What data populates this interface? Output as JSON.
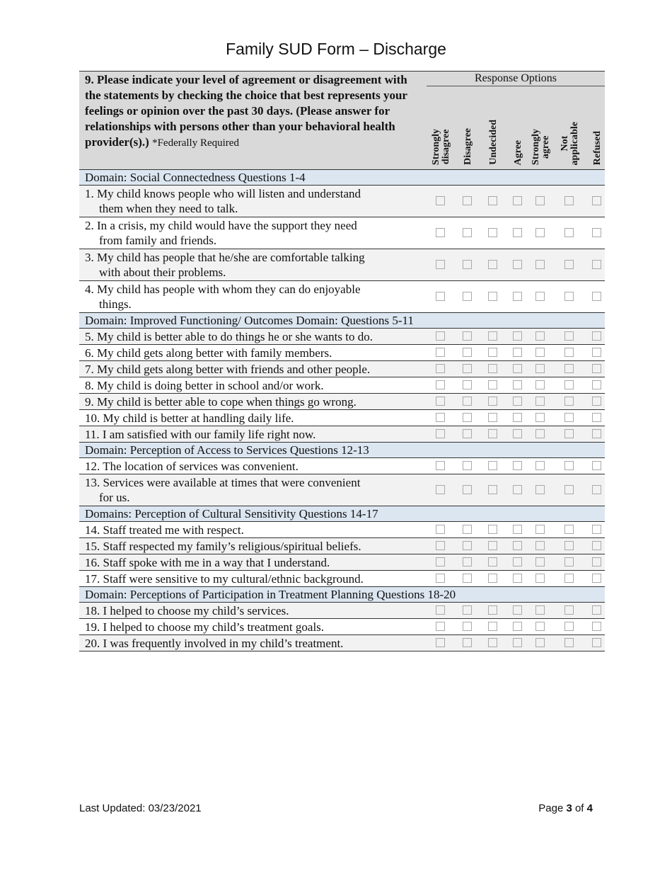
{
  "title": "Family SUD Form – Discharge",
  "header": {
    "question": "9. Please indicate your level of agreement or disagreement with the statements by checking the choice that best represents your feelings or opinion over the past 30 days. (Please answer for relationships with persons other than your behavioral health provider(s).)",
    "required_note": "*Federally Required",
    "response_options_label": "Response Options",
    "options": [
      "Strongly\ndisagree",
      "Disagree",
      "Undecided",
      "Agree",
      "Strongly\nagree",
      "Not\napplicable",
      "Refused"
    ]
  },
  "sections": [
    {
      "domain": "Domain: Social Connectedness Questions 1-4",
      "items": [
        {
          "line1": "1. My child knows people who will listen and understand",
          "line2": "them when they need to talk.",
          "checked": []
        },
        {
          "line1": "2. In a crisis, my child would have the support they need",
          "line2": "from family and friends.",
          "checked": []
        },
        {
          "line1": "3. My child has people that he/she are comfortable talking",
          "line2": "with about their problems.",
          "checked": []
        },
        {
          "line1": "4. My child has people with whom they can do enjoyable",
          "line2": "things.",
          "checked": []
        }
      ]
    },
    {
      "domain": "Domain: Improved Functioning/ Outcomes Domain: Questions 5-11",
      "items": [
        {
          "line1": "5. My child is better able to do things he or she wants to do."
        },
        {
          "line1": "6. My child gets along better with family members."
        },
        {
          "line1": "7. My child gets along better with friends and other people."
        },
        {
          "line1": "8. My child is doing better in school and/or work."
        },
        {
          "line1": "9. My child is better able to cope when things go wrong."
        },
        {
          "line1": "10. My child is better at handling daily life."
        },
        {
          "line1": "11. I am satisfied with our family life right now."
        }
      ]
    },
    {
      "domain": "Domain: Perception of Access to Services Questions 12-13",
      "items": [
        {
          "line1": "12. The location of services was convenient."
        },
        {
          "line1": "13. Services were available at times that were convenient",
          "line2": "for us."
        }
      ]
    },
    {
      "domain": "Domains: Perception of Cultural Sensitivity Questions 14-17",
      "items": [
        {
          "line1": "14. Staff treated me with respect."
        },
        {
          "line1": "15. Staff respected my family’s religious/spiritual beliefs."
        },
        {
          "line1": "16. Staff spoke with me in a way that I understand."
        },
        {
          "line1": "17. Staff were sensitive to my cultural/ethnic background."
        }
      ]
    },
    {
      "domain": "Domain: Perceptions of Participation in Treatment Planning Questions 18-20",
      "items": [
        {
          "line1": "18. I helped to choose my child’s services."
        },
        {
          "line1": "19. I helped to choose my child’s treatment goals."
        },
        {
          "line1": "20. I was frequently involved in my child’s treatment."
        }
      ]
    }
  ],
  "footer": {
    "last_updated": "Last Updated: 03/23/2021",
    "page_prefix": "Page ",
    "page_current": "3",
    "page_of": " of ",
    "page_total": "4"
  }
}
